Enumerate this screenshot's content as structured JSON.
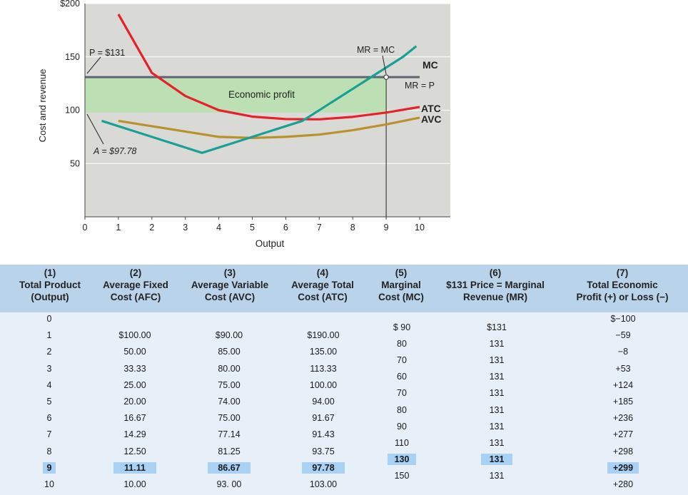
{
  "chart_data": {
    "type": "line",
    "ylabel": "Cost and revenue",
    "xlabel": "Output",
    "xlim": [
      0,
      10.6
    ],
    "ylim": [
      0,
      200
    ],
    "x_ticks": [
      "0",
      "1",
      "2",
      "3",
      "4",
      "5",
      "6",
      "7",
      "8",
      "9",
      "10"
    ],
    "y_ticks": [
      {
        "value": 50,
        "label": "50"
      },
      {
        "value": 100,
        "label": "100"
      },
      {
        "value": 150,
        "label": "150"
      },
      {
        "value": 200,
        "label": "$200"
      }
    ],
    "series": [
      {
        "name": "ATC",
        "color": "#e8202a",
        "points": [
          [
            1,
            190
          ],
          [
            2,
            135
          ],
          [
            3,
            113.33
          ],
          [
            4,
            100
          ],
          [
            5,
            94
          ],
          [
            6,
            91.67
          ],
          [
            7,
            91.43
          ],
          [
            8,
            93.75
          ],
          [
            9,
            97.78
          ],
          [
            10,
            103
          ]
        ]
      },
      {
        "name": "AVC",
        "color": "#b8922e",
        "points": [
          [
            1,
            90
          ],
          [
            2,
            85
          ],
          [
            3,
            80
          ],
          [
            4,
            75
          ],
          [
            5,
            74
          ],
          [
            6,
            75
          ],
          [
            7,
            77.14
          ],
          [
            8,
            81.25
          ],
          [
            9,
            86.67
          ],
          [
            10,
            93
          ]
        ]
      },
      {
        "name": "MC",
        "color": "#1a9f96",
        "points": [
          [
            0.5,
            90
          ],
          [
            1.5,
            80
          ],
          [
            2.5,
            70
          ],
          [
            3.5,
            60
          ],
          [
            4.5,
            70
          ],
          [
            5.5,
            80
          ],
          [
            6.5,
            90
          ],
          [
            7.5,
            110
          ],
          [
            8.5,
            130
          ],
          [
            9.5,
            150
          ],
          [
            9.9,
            160
          ]
        ]
      },
      {
        "name": "MR = P",
        "color": "#5b6770",
        "points": [
          [
            0,
            131
          ],
          [
            10,
            131
          ]
        ]
      }
    ],
    "profit_rect": {
      "label": "Economic profit",
      "x": [
        0,
        9
      ],
      "y": [
        97.78,
        131
      ],
      "color": "#bddfb4"
    },
    "vertical_marker": {
      "x": 9,
      "y": 131
    },
    "annotations": {
      "price": "P = $131",
      "avg_total": "A = $97.78",
      "mr_mc": "MR = MC",
      "mc": "MC",
      "mr_p": "MR = P",
      "atc": "ATC",
      "avc": "AVC"
    }
  },
  "table": {
    "headers": [
      {
        "num": "(1)",
        "line1": "Total Product",
        "line2": "(Output)"
      },
      {
        "num": "(2)",
        "line1": "Average Fixed",
        "line2": "Cost (AFC)"
      },
      {
        "num": "(3)",
        "line1": "Average Variable",
        "line2": "Cost (AVC)"
      },
      {
        "num": "(4)",
        "line1": "Average Total",
        "line2": "Cost (ATC)"
      },
      {
        "num": "(5)",
        "line1": "Marginal",
        "line2": "Cost (MC)"
      },
      {
        "num": "(6)",
        "line1": "$131 Price = Marginal",
        "line2": "Revenue (MR)"
      },
      {
        "num": "(7)",
        "line1": "Total Economic",
        "line2": "Profit (+) or Loss (−)"
      }
    ],
    "output": [
      "0",
      "1",
      "2",
      "3",
      "4",
      "5",
      "6",
      "7",
      "8",
      "9",
      "10"
    ],
    "afc": [
      "$100.00",
      "50.00",
      "33.33",
      "25.00",
      "20.00",
      "16.67",
      "14.29",
      "12.50",
      "11.11",
      "10.00"
    ],
    "avc": [
      "$90.00",
      "85.00",
      "80.00",
      "75.00",
      "74.00",
      "75.00",
      "77.14",
      "81.25",
      "86.67",
      "93. 00"
    ],
    "atc": [
      "$190.00",
      "135.00",
      "113.33",
      "100.00",
      "94.00",
      "91.67",
      "91.43",
      "93.75",
      "97.78",
      "103.00"
    ],
    "mc": [
      "$ 90",
      "80",
      "70",
      "60",
      "70",
      "80",
      "90",
      "110",
      "130",
      "150"
    ],
    "mr": [
      "$131",
      "131",
      "131",
      "131",
      "131",
      "131",
      "131",
      "131",
      "131",
      "131"
    ],
    "profit": [
      "$−100",
      "−59",
      "−8",
      "+53",
      "+124",
      "+185",
      "+236",
      "+277",
      "+298",
      "+299",
      "+280"
    ],
    "highlight_output": "9"
  }
}
